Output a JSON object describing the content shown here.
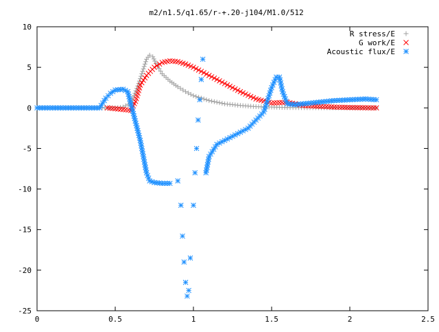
{
  "chart_data": {
    "type": "scatter",
    "title": "m2/n1.5/q1.65/r-+.20-j104/M1.0/512",
    "xlabel": "",
    "ylabel": "",
    "xlim": [
      0,
      2.5
    ],
    "ylim": [
      -25,
      10
    ],
    "xticks": [
      "0",
      "0.5",
      "1",
      "1.5",
      "2",
      "2.5"
    ],
    "yticks": [
      "10",
      "5",
      "0",
      "-5",
      "-10",
      "-15",
      "-20",
      "-25"
    ],
    "grid": false,
    "legend_position": "top-right",
    "series": [
      {
        "name": "R stress/E",
        "marker": "plus",
        "color": "#a0a0a0",
        "x": [
          0.0,
          0.1,
          0.2,
          0.3,
          0.4,
          0.5,
          0.55,
          0.6,
          0.62,
          0.65,
          0.68,
          0.7,
          0.72,
          0.74,
          0.76,
          0.8,
          0.85,
          0.9,
          0.95,
          1.0,
          1.1,
          1.2,
          1.3,
          1.4,
          1.5,
          1.6,
          1.8,
          2.0,
          2.17
        ],
        "y": [
          0,
          0,
          0,
          0,
          0,
          0,
          0.1,
          0.6,
          1.5,
          3.0,
          4.8,
          6.0,
          6.5,
          6.3,
          5.5,
          4.2,
          3.3,
          2.6,
          2.0,
          1.5,
          0.9,
          0.5,
          0.3,
          0.15,
          0.1,
          0.05,
          0.02,
          0.01,
          0.0
        ]
      },
      {
        "name": "G work/E",
        "marker": "cross",
        "color": "#ff0000",
        "x": [
          0.45,
          0.5,
          0.55,
          0.6,
          0.63,
          0.66,
          0.7,
          0.75,
          0.8,
          0.85,
          0.9,
          0.95,
          1.0,
          1.05,
          1.1,
          1.2,
          1.3,
          1.4,
          1.5,
          1.6,
          1.7,
          1.8,
          1.9,
          2.0,
          2.1,
          2.17
        ],
        "y": [
          0,
          -0.1,
          -0.2,
          -0.3,
          0.8,
          2.8,
          4.0,
          5.0,
          5.6,
          5.8,
          5.7,
          5.4,
          5.0,
          4.5,
          4.0,
          3.0,
          2.0,
          1.1,
          0.6,
          0.7,
          0.3,
          0.2,
          0.1,
          0.05,
          0.02,
          0.0
        ]
      },
      {
        "name": "Acoustic flux/E",
        "marker": "star",
        "color": "#1e90ff",
        "x": [
          0.0,
          0.1,
          0.2,
          0.3,
          0.4,
          0.44,
          0.47,
          0.5,
          0.55,
          0.58,
          0.6,
          0.62,
          0.64,
          0.66,
          0.68,
          0.7,
          0.72,
          0.75,
          0.8,
          0.85,
          0.9,
          0.92,
          0.93,
          0.94,
          0.95,
          0.96,
          0.97,
          0.98,
          1.0,
          1.01,
          1.02,
          1.03,
          1.04,
          1.05,
          1.06,
          1.08,
          1.1,
          1.15,
          1.2,
          1.25,
          1.3,
          1.35,
          1.4,
          1.45,
          1.5,
          1.53,
          1.55,
          1.57,
          1.6,
          1.65,
          1.7,
          1.8,
          1.9,
          2.0,
          2.1,
          2.17
        ],
        "y": [
          0,
          0,
          0,
          0,
          0,
          1.2,
          1.8,
          2.2,
          2.3,
          2.0,
          0.5,
          -1.0,
          -2.5,
          -4.0,
          -6.0,
          -8.0,
          -9.0,
          -9.2,
          -9.3,
          -9.3,
          -9.0,
          -12.0,
          -15.8,
          -19.0,
          -21.5,
          -23.2,
          -22.5,
          -18.5,
          -12.0,
          -8.0,
          -5.0,
          -1.5,
          1.0,
          3.5,
          6.0,
          -8.0,
          -6.0,
          -4.5,
          -4.0,
          -3.5,
          -3.0,
          -2.5,
          -1.5,
          -0.5,
          2.5,
          3.8,
          3.8,
          2.0,
          0.5,
          0.4,
          0.5,
          0.7,
          0.9,
          1.0,
          1.1,
          1.0
        ]
      }
    ]
  }
}
